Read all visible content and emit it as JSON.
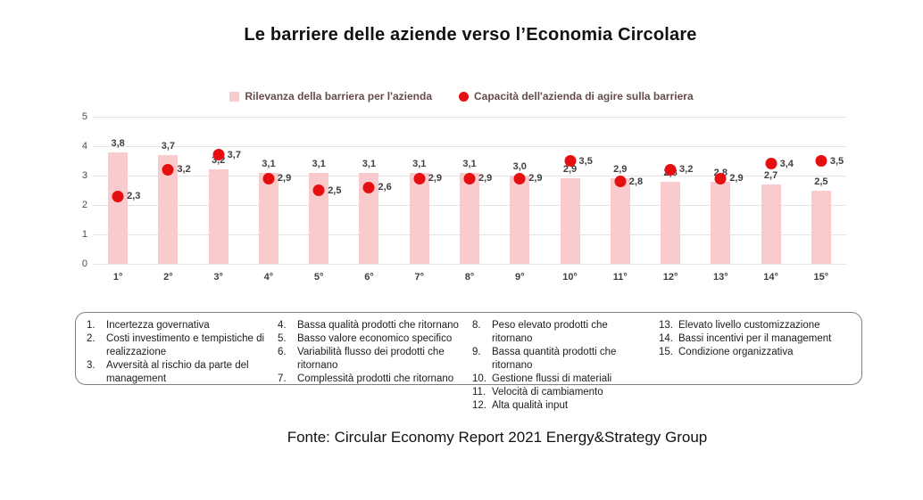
{
  "slide": {
    "title": "Le barriere delle aziende verso l’Economia Circolare",
    "footer": "Fonte: Circular Economy Report 2021 Energy&Strategy Group"
  },
  "legend": {
    "bar": "Rilevanza della barriera per l'azienda",
    "dot": "Capacità dell'azienda di agire sulla barriera"
  },
  "colors": {
    "title_text": "#111111",
    "legend_text": "#664c49",
    "label_text": "#3f3f3f",
    "axis_text": "#4a4a4a",
    "list_text": "#1c1c1c",
    "bar_fill": "#f9cbcc",
    "dot_fill": "#e60f0f",
    "gridline": "#e4e4e4",
    "box_border": "#808080"
  },
  "chart_data": {
    "type": "bar",
    "title": "",
    "xlabel": "",
    "ylabel": "",
    "categories": [
      "1°",
      "2°",
      "3°",
      "4°",
      "5°",
      "6°",
      "7°",
      "8°",
      "9°",
      "10°",
      "11°",
      "12°",
      "13°",
      "14°",
      "15°"
    ],
    "series": [
      {
        "name": "Rilevanza della barriera per l'azienda",
        "type": "bar",
        "values": [
          3.8,
          3.7,
          3.2,
          3.1,
          3.1,
          3.1,
          3.1,
          3.1,
          3.0,
          2.9,
          2.9,
          2.8,
          2.8,
          2.7,
          2.5
        ],
        "labels": [
          "3,8",
          "3,7",
          "3,2",
          "3,1",
          "3,1",
          "3,1",
          "3,1",
          "3,1",
          "3,0",
          "2,9",
          "2,9",
          "2,8",
          "2,8",
          "2,7",
          "2,5"
        ]
      },
      {
        "name": "Capacità dell'azienda di agire sulla barriera",
        "type": "scatter",
        "values": [
          2.3,
          3.2,
          3.7,
          2.9,
          2.5,
          2.6,
          2.9,
          2.9,
          2.9,
          3.5,
          2.8,
          3.2,
          2.9,
          3.4,
          3.5
        ],
        "labels": [
          "2,3",
          "3,2",
          "3,7",
          "2,9",
          "2,5",
          "2,6",
          "2,9",
          "2,9",
          "2,9",
          "3,5",
          "2,8",
          "3,2",
          "2,9",
          "3,4",
          "3,5"
        ]
      }
    ],
    "ylim": [
      0,
      5
    ],
    "yticks": [
      0,
      1,
      2,
      3,
      4,
      5
    ],
    "grid": true,
    "legend_position": "top"
  },
  "barriers": {
    "columns": [
      [
        {
          "num": "1.",
          "text": "Incertezza governativa"
        },
        {
          "num": "2.",
          "text": "Costi investimento e tempistiche di realizzazione"
        },
        {
          "num": "3.",
          "text": "Avversità al rischio da parte del management"
        }
      ],
      [
        {
          "num": "4.",
          "text": "Bassa qualità prodotti che ritornano"
        },
        {
          "num": "5.",
          "text": "Basso valore economico specifico"
        },
        {
          "num": "6.",
          "text": "Variabilità flusso dei prodotti che ritornano"
        },
        {
          "num": "7.",
          "text": "Complessità prodotti che ritornano"
        }
      ],
      [
        {
          "num": "8.",
          "text": "Peso elevato prodotti che ritornano"
        },
        {
          "num": "9.",
          "text": "Bassa quantità prodotti che ritornano"
        },
        {
          "num": "10.",
          "text": "Gestione flussi di materiali"
        },
        {
          "num": "11.",
          "text": "Velocità di cambiamento"
        },
        {
          "num": "12.",
          "text": "Alta qualità input"
        }
      ],
      [
        {
          "num": "13.",
          "text": "Elevato livello customizzazione"
        },
        {
          "num": "14.",
          "text": "Bassi incentivi per il management"
        },
        {
          "num": "15.",
          "text": "Condizione organizzativa"
        }
      ]
    ]
  }
}
